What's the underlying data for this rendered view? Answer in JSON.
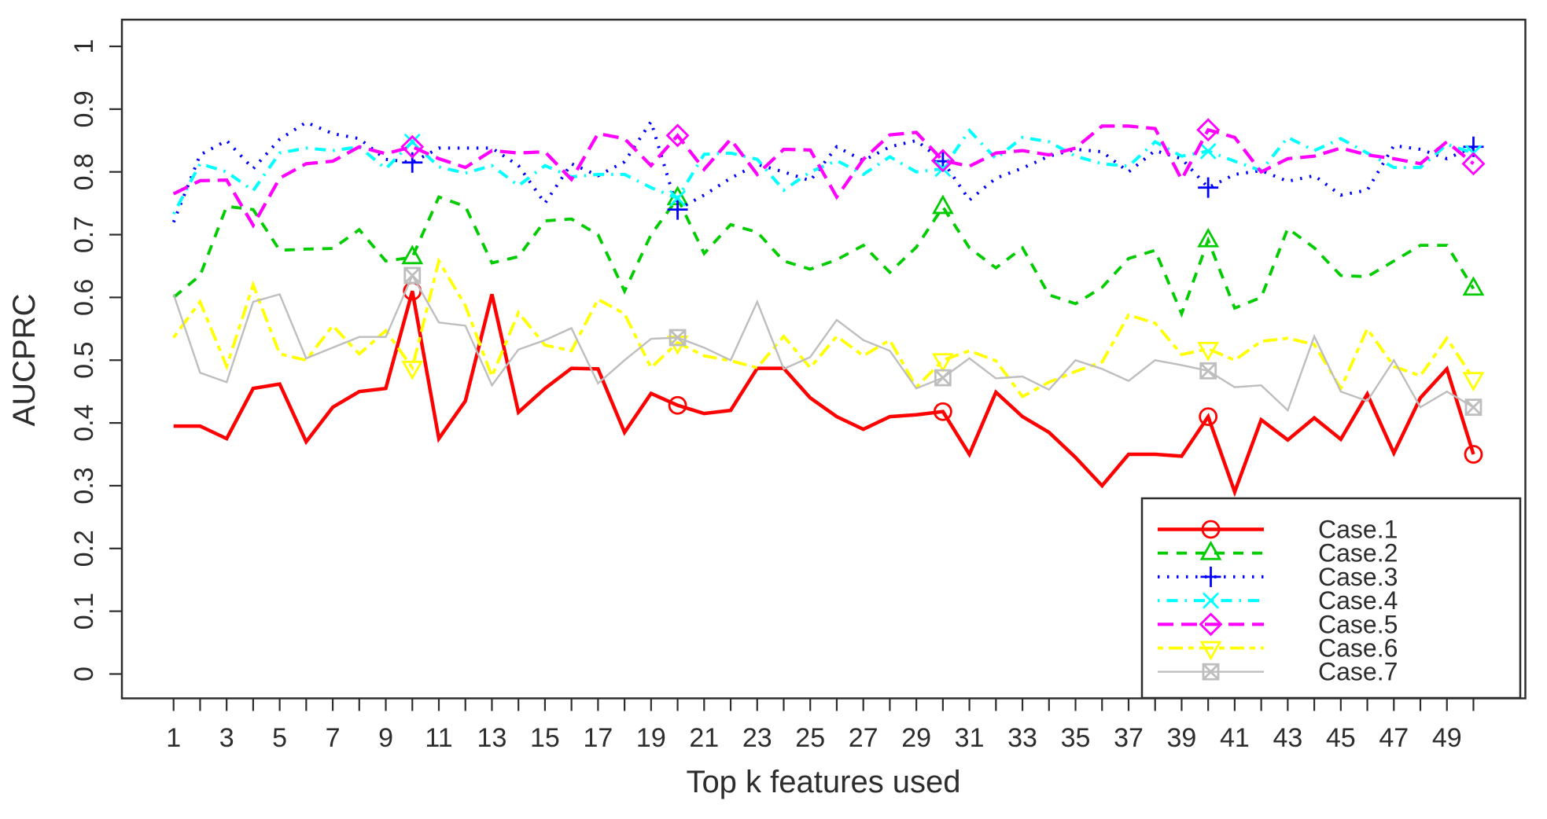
{
  "chart_data": {
    "type": "line",
    "title": "",
    "xlabel": "Top k features used",
    "ylabel": "AUCPRC",
    "xlim": [
      1,
      50
    ],
    "ylim": [
      0,
      1
    ],
    "grid": false,
    "x": [
      1,
      2,
      3,
      4,
      5,
      6,
      7,
      8,
      9,
      10,
      11,
      12,
      13,
      14,
      15,
      16,
      17,
      18,
      19,
      20,
      21,
      22,
      23,
      24,
      25,
      26,
      27,
      28,
      29,
      30,
      31,
      32,
      33,
      34,
      35,
      36,
      37,
      38,
      39,
      40,
      41,
      42,
      43,
      44,
      45,
      46,
      47,
      48,
      49,
      50
    ],
    "x_labeled_ticks": [
      1,
      3,
      5,
      7,
      9,
      11,
      13,
      15,
      17,
      19,
      21,
      23,
      25,
      27,
      29,
      31,
      33,
      35,
      37,
      39,
      41,
      43,
      45,
      47,
      49
    ],
    "y_ticks": [
      0,
      0.1,
      0.2,
      0.3,
      0.4,
      0.5,
      0.6,
      0.7,
      0.8,
      0.9,
      1
    ],
    "y_tick_labels": [
      "0",
      "0.1",
      "0.2",
      "0.3",
      "0.4",
      "0.5",
      "0.6",
      "0.7",
      "0.8",
      "0.9",
      "1"
    ],
    "marker_points": [
      10,
      20,
      30,
      40,
      50
    ],
    "legend_position": "bottomright",
    "axis_color": "#2d2d2d",
    "series": [
      {
        "name": "Case.1",
        "color": "#ff0000",
        "linetype": "solid",
        "marker": "circle",
        "values": [
          0.395,
          0.395,
          0.375,
          0.455,
          0.462,
          0.37,
          0.425,
          0.45,
          0.455,
          0.61,
          0.375,
          0.435,
          0.605,
          0.417,
          0.455,
          0.487,
          0.486,
          0.385,
          0.447,
          0.428,
          0.415,
          0.42,
          0.487,
          0.487,
          0.44,
          0.41,
          0.39,
          0.41,
          0.413,
          0.418,
          0.35,
          0.449,
          0.41,
          0.385,
          0.345,
          0.3,
          0.35,
          0.35,
          0.347,
          0.41,
          0.29,
          0.405,
          0.373,
          0.408,
          0.374,
          0.446,
          0.352,
          0.44,
          0.486,
          0.35
        ]
      },
      {
        "name": "Case.2",
        "color": "#00cc00",
        "linetype": "dashed",
        "marker": "triangle-up",
        "values": [
          0.6,
          0.635,
          0.745,
          0.74,
          0.675,
          0.677,
          0.678,
          0.708,
          0.658,
          0.664,
          0.76,
          0.745,
          0.655,
          0.665,
          0.722,
          0.725,
          0.7,
          0.61,
          0.7,
          0.758,
          0.67,
          0.716,
          0.704,
          0.658,
          0.645,
          0.66,
          0.683,
          0.64,
          0.68,
          0.744,
          0.679,
          0.647,
          0.679,
          0.604,
          0.59,
          0.616,
          0.662,
          0.675,
          0.574,
          0.691,
          0.583,
          0.6,
          0.71,
          0.679,
          0.635,
          0.633,
          0.658,
          0.683,
          0.683,
          0.614
        ]
      },
      {
        "name": "Case.3",
        "color": "#0000ff",
        "linetype": "dotted",
        "marker": "plus",
        "values": [
          0.72,
          0.827,
          0.85,
          0.805,
          0.852,
          0.879,
          0.861,
          0.853,
          0.82,
          0.815,
          0.838,
          0.838,
          0.838,
          0.81,
          0.75,
          0.813,
          0.794,
          0.816,
          0.88,
          0.74,
          0.763,
          0.79,
          0.812,
          0.8,
          0.786,
          0.84,
          0.818,
          0.84,
          0.85,
          0.817,
          0.755,
          0.79,
          0.806,
          0.825,
          0.836,
          0.832,
          0.8,
          0.834,
          0.821,
          0.775,
          0.796,
          0.802,
          0.785,
          0.794,
          0.763,
          0.771,
          0.842,
          0.836,
          0.821,
          0.84
        ]
      },
      {
        "name": "Case.4",
        "color": "#00ffff",
        "linetype": "dotdash",
        "marker": "x-cross",
        "values": [
          0.733,
          0.813,
          0.8,
          0.77,
          0.83,
          0.838,
          0.834,
          0.84,
          0.805,
          0.848,
          0.808,
          0.798,
          0.81,
          0.778,
          0.81,
          0.792,
          0.796,
          0.796,
          0.775,
          0.758,
          0.828,
          0.83,
          0.82,
          0.771,
          0.8,
          0.818,
          0.796,
          0.824,
          0.8,
          0.805,
          0.866,
          0.821,
          0.855,
          0.848,
          0.825,
          0.813,
          0.809,
          0.848,
          0.825,
          0.833,
          0.817,
          0.802,
          0.855,
          0.834,
          0.853,
          0.83,
          0.807,
          0.807,
          0.844,
          0.83
        ]
      },
      {
        "name": "Case.5",
        "color": "#ff00ff",
        "linetype": "longdash",
        "marker": "diamond",
        "values": [
          0.765,
          0.786,
          0.787,
          0.715,
          0.79,
          0.813,
          0.817,
          0.84,
          0.829,
          0.84,
          0.821,
          0.807,
          0.834,
          0.83,
          0.832,
          0.788,
          0.861,
          0.853,
          0.81,
          0.858,
          0.804,
          0.852,
          0.796,
          0.836,
          0.835,
          0.76,
          0.82,
          0.859,
          0.863,
          0.818,
          0.809,
          0.83,
          0.834,
          0.827,
          0.838,
          0.873,
          0.873,
          0.869,
          0.788,
          0.867,
          0.855,
          0.8,
          0.821,
          0.825,
          0.838,
          0.827,
          0.821,
          0.813,
          0.848,
          0.813
        ]
      },
      {
        "name": "Case.6",
        "color": "#ffff00",
        "linetype": "twodash",
        "marker": "triangle-down",
        "values": [
          0.536,
          0.593,
          0.49,
          0.62,
          0.51,
          0.5,
          0.555,
          0.51,
          0.547,
          0.488,
          0.658,
          0.587,
          0.474,
          0.576,
          0.524,
          0.515,
          0.597,
          0.574,
          0.488,
          0.528,
          0.507,
          0.499,
          0.488,
          0.538,
          0.488,
          0.538,
          0.507,
          0.532,
          0.457,
          0.5,
          0.515,
          0.499,
          0.442,
          0.465,
          0.482,
          0.497,
          0.572,
          0.559,
          0.509,
          0.518,
          0.5,
          0.53,
          0.535,
          0.525,
          0.455,
          0.55,
          0.49,
          0.475,
          0.535,
          0.47
        ]
      },
      {
        "name": "Case.7",
        "color": "#bebebe",
        "linetype": "solid",
        "marker": "square-x",
        "values": [
          0.605,
          0.48,
          0.465,
          0.593,
          0.605,
          0.503,
          0.52,
          0.537,
          0.537,
          0.635,
          0.56,
          0.555,
          0.46,
          0.517,
          0.532,
          0.551,
          0.463,
          0.5,
          0.534,
          0.536,
          0.52,
          0.5,
          0.593,
          0.486,
          0.505,
          0.564,
          0.532,
          0.515,
          0.455,
          0.472,
          0.503,
          0.471,
          0.474,
          0.453,
          0.5,
          0.486,
          0.467,
          0.5,
          0.492,
          0.483,
          0.457,
          0.46,
          0.42,
          0.538,
          0.45,
          0.435,
          0.5,
          0.425,
          0.45,
          0.425
        ]
      }
    ]
  }
}
